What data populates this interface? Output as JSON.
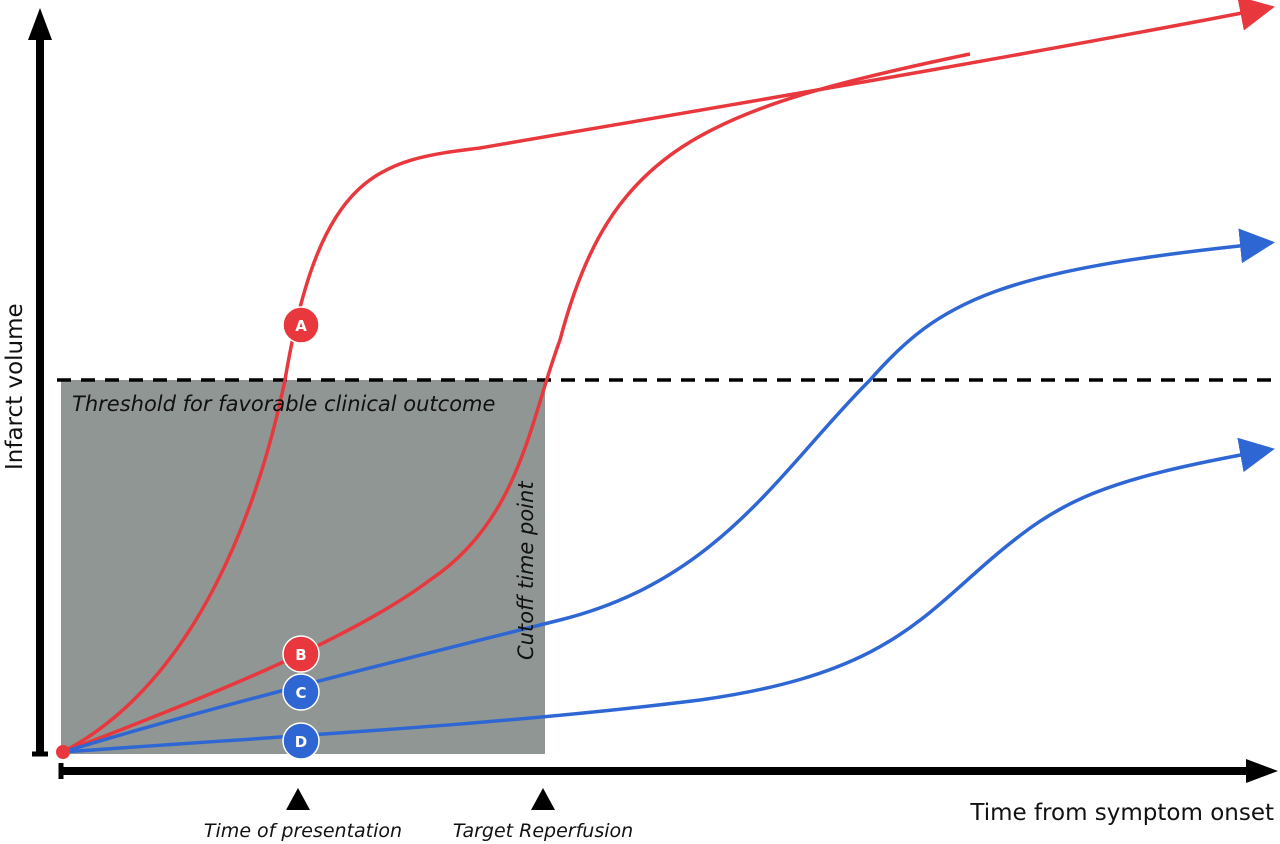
{
  "axes": {
    "y_label": "Infarct volume",
    "x_label": "Time from symptom onset"
  },
  "threshold": {
    "label": "Threshold for favorable clinical outcome"
  },
  "cutoff": {
    "label": "Cutoff time point"
  },
  "markers": [
    {
      "label": "Time of presentation"
    },
    {
      "label": "Target Reperfusion"
    }
  ],
  "curves": [
    {
      "id": "A",
      "color": "#e8383d"
    },
    {
      "id": "B",
      "color": "#e8383d"
    },
    {
      "id": "C",
      "color": "#2e67d4"
    },
    {
      "id": "D",
      "color": "#2e67d4"
    }
  ],
  "colors": {
    "red": "#e8383d",
    "blue": "#2e67d4",
    "box": "#909693",
    "axis": "#000000"
  }
}
